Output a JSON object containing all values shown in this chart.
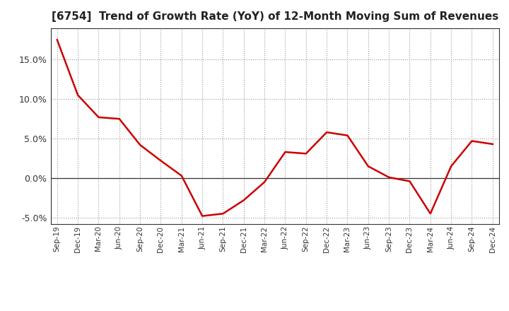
{
  "title": "[6754]  Trend of Growth Rate (YoY) of 12-Month Moving Sum of Revenues",
  "x_labels": [
    "Sep-19",
    "Dec-19",
    "Mar-20",
    "Jun-20",
    "Sep-20",
    "Dec-20",
    "Mar-21",
    "Jun-21",
    "Sep-21",
    "Dec-21",
    "Mar-22",
    "Jun-22",
    "Sep-22",
    "Dec-22",
    "Mar-23",
    "Jun-23",
    "Sep-23",
    "Dec-23",
    "Mar-24",
    "Jun-24",
    "Sep-24",
    "Dec-24"
  ],
  "y_values": [
    17.5,
    10.5,
    7.7,
    7.5,
    4.2,
    2.2,
    0.3,
    -4.8,
    -4.5,
    -2.8,
    -0.5,
    3.3,
    3.1,
    5.8,
    5.4,
    1.5,
    0.1,
    -0.4,
    -4.5,
    1.5,
    4.7,
    4.3
  ],
  "line_color": "#CC0000",
  "line_width": 1.8,
  "background_color": "#ffffff",
  "grid_color": "#999999",
  "ylim": [
    -5.8,
    19.0
  ],
  "yticks": [
    -5.0,
    0.0,
    5.0,
    10.0,
    15.0
  ],
  "ytick_labels": [
    "-5.0%",
    "0.0%",
    "5.0%",
    "10.0%",
    "15.0%"
  ],
  "zero_line_color": "#333333",
  "title_fontsize": 11,
  "spine_color": "#333333"
}
